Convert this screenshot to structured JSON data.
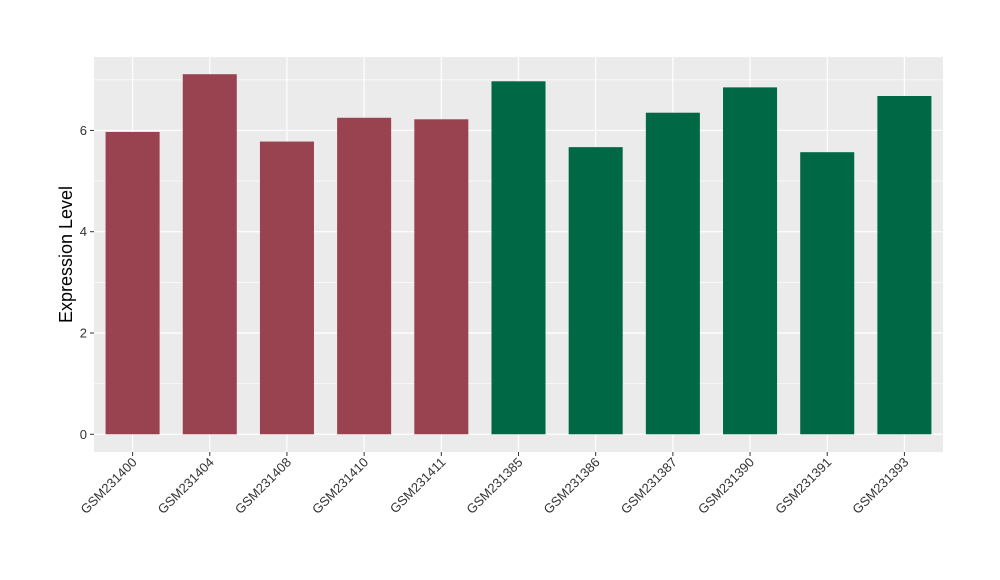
{
  "chart_data": {
    "type": "bar",
    "title": "",
    "xlabel": "",
    "ylabel": "Expression Level",
    "ylim": [
      -0.35,
      7.45
    ],
    "yticks": [
      0,
      2,
      4,
      6
    ],
    "grid": true,
    "legend": "none",
    "categories": [
      "GSM231400",
      "GSM231404",
      "GSM231408",
      "GSM231410",
      "GSM231411",
      "GSM231385",
      "GSM231386",
      "GSM231387",
      "GSM231390",
      "GSM231391",
      "GSM231393"
    ],
    "values": [
      5.97,
      7.11,
      5.78,
      6.25,
      6.22,
      6.97,
      5.67,
      6.35,
      6.85,
      5.57,
      6.68
    ],
    "bar_colors": [
      "#994250",
      "#994250",
      "#994250",
      "#994250",
      "#994250",
      "#006845",
      "#006845",
      "#006845",
      "#006845",
      "#006845",
      "#006845"
    ],
    "panel_background": "#EBEBEB",
    "grid_color": "#FFFFFF"
  }
}
